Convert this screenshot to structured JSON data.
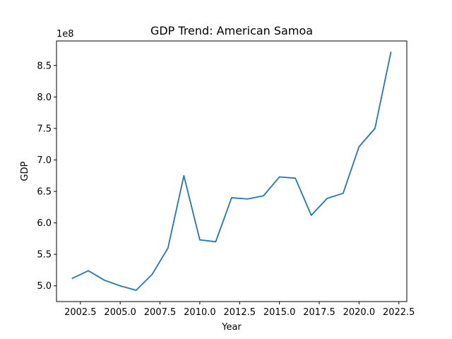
{
  "chart_data": {
    "type": "line",
    "title": "GDP Trend: American Samoa",
    "xlabel": "Year",
    "ylabel": "GDP",
    "y_offset_label": "1e8",
    "x": [
      2002,
      2003,
      2004,
      2005,
      2006,
      2007,
      2008,
      2009,
      2010,
      2011,
      2012,
      2013,
      2014,
      2015,
      2016,
      2017,
      2018,
      2019,
      2020,
      2021,
      2022
    ],
    "series": [
      {
        "values": [
          512000000,
          524000000,
          509000000,
          500000000,
          493000000,
          518000000,
          560000000,
          675000000,
          573000000,
          570000000,
          640000000,
          638000000,
          643000000,
          673000000,
          671000000,
          612000000,
          639000000,
          647000000,
          721000000,
          750000000,
          871000000
        ],
        "color": "#1f77b4"
      }
    ],
    "xlim": [
      2001,
      2023
    ],
    "ylim": [
      475000000,
      889000000
    ],
    "x_ticks": [
      2002.5,
      2005.0,
      2007.5,
      2010.0,
      2012.5,
      2015.0,
      2017.5,
      2020.0,
      2022.5
    ],
    "x_tick_labels": [
      "2002.5",
      "2005.0",
      "2007.5",
      "2010.0",
      "2012.5",
      "2015.0",
      "2017.5",
      "2020.0",
      "2022.5"
    ],
    "y_ticks": [
      500000000,
      550000000,
      600000000,
      650000000,
      700000000,
      750000000,
      800000000,
      850000000
    ],
    "y_tick_labels": [
      "5.0",
      "5.5",
      "6.0",
      "6.5",
      "7.0",
      "7.5",
      "8.0",
      "8.5"
    ],
    "grid": false,
    "legend": "none"
  }
}
